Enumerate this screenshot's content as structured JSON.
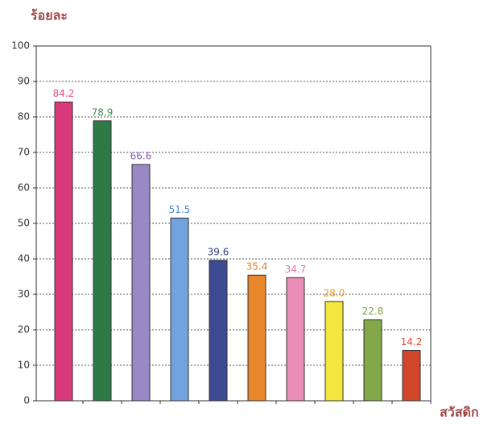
{
  "chart_data": {
    "type": "bar",
    "y_label": "ร้อยละ",
    "x_label": "สวัสดิก",
    "categories": [
      null,
      null,
      null,
      null,
      null,
      null,
      null,
      null,
      null,
      null
    ],
    "values": [
      84.2,
      78.9,
      66.6,
      51.5,
      39.6,
      35.4,
      34.7,
      28.0,
      22.8,
      14.2
    ],
    "value_labels": [
      "84.2",
      "78.9",
      "66.6",
      "51.5",
      "39.6",
      "35.4",
      "34.7",
      "28.0",
      "22.8",
      "14.2"
    ],
    "colors": [
      "#d8397a",
      "#2e7a46",
      "#9a87c6",
      "#72a3de",
      "#3c4a90",
      "#e8872c",
      "#ea8db8",
      "#f4e63c",
      "#82a84a",
      "#d2452a"
    ],
    "label_colors": [
      "#e0508a",
      "#3f8a57",
      "#7e5aa8",
      "#4a86cc",
      "#2f3d80",
      "#e57a22",
      "#e07aa8",
      "#e8a030",
      "#7aa040",
      "#d8452a"
    ],
    "ylim": [
      0,
      100
    ],
    "yticks": [
      0,
      10,
      20,
      30,
      40,
      50,
      60,
      70,
      80,
      90,
      100
    ],
    "grid": true
  }
}
